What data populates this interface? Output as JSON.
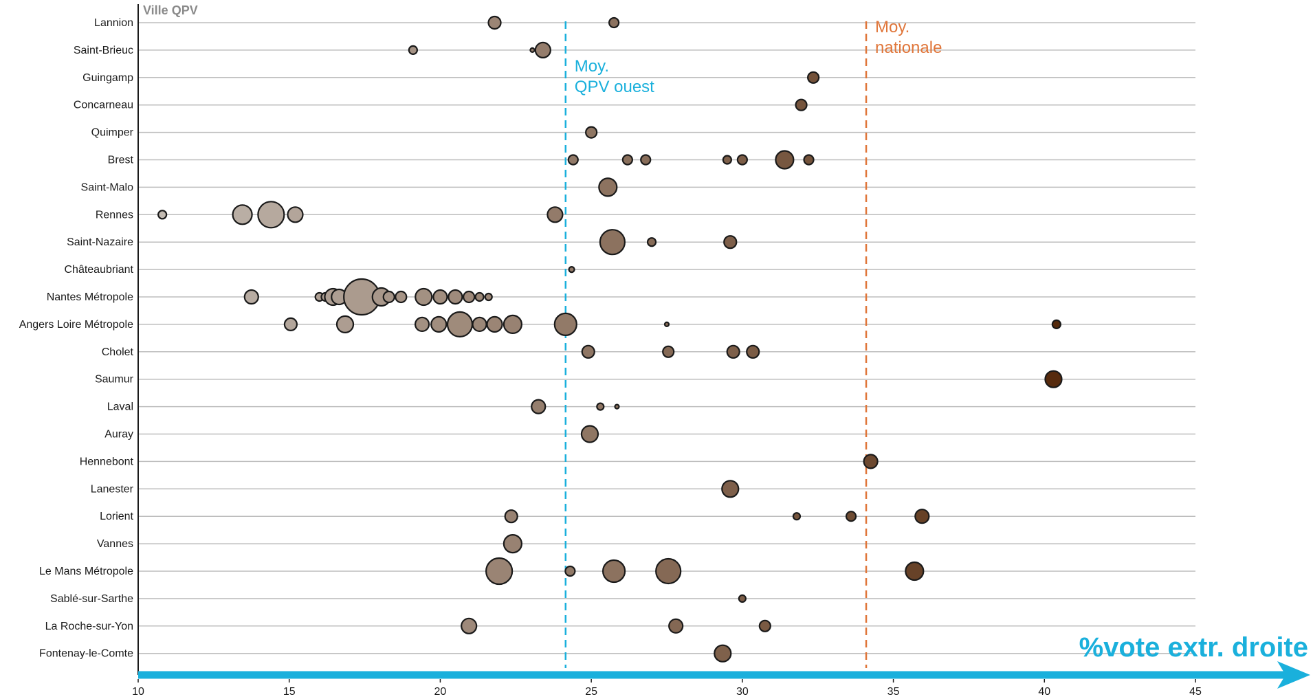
{
  "chart_data": {
    "type": "scatter",
    "title": "",
    "corner_label": "Ville QPV",
    "xlabel": "%vote extr. droite",
    "ylabel": "",
    "xlim": [
      10,
      45
    ],
    "x_ticks": [
      "10",
      "15",
      "20",
      "25",
      "30",
      "35",
      "40",
      "45"
    ],
    "grid": "horizontal",
    "point_size": "proportional (unlabeled)",
    "point_color": "graduated from light grey-brown (low) to dark brown (high)",
    "reference_lines": [
      {
        "value": 24.15,
        "label_lines": [
          "Moy.",
          "QPV ouest"
        ],
        "color": "#1ab0dc",
        "style": "dashed"
      },
      {
        "value": 34.1,
        "label_lines": [
          "Moy.",
          "nationale"
        ],
        "color": "#e0763a",
        "style": "dashed"
      }
    ],
    "colors": {
      "axis_arrow": "#1ab0dc",
      "grid": "#bdbdbd",
      "point_stroke": "#1a1a1a"
    },
    "categories": [
      "Lannion",
      "Saint-Brieuc",
      "Guingamp",
      "Concarneau",
      "Quimper",
      "Brest",
      "Saint-Malo",
      "Rennes",
      "Saint-Nazaire",
      "Châteaubriant",
      "Nantes Métropole",
      "Angers Loire Métropole",
      "Cholet",
      "Saumur",
      "Laval",
      "Auray",
      "Hennebont",
      "Lanester",
      "Lorient",
      "Vannes",
      "Le Mans Métropole",
      "Sablé-sur-Sarthe",
      "La Roche-sur-Yon",
      "Fontenay-le-Comte"
    ],
    "series": [
      {
        "category": "Lannion",
        "points": [
          {
            "x": 21.8,
            "s": 9
          },
          {
            "x": 25.75,
            "s": 7
          }
        ]
      },
      {
        "category": "Saint-Brieuc",
        "points": [
          {
            "x": 19.1,
            "s": 6
          },
          {
            "x": 23.05,
            "s": 3
          },
          {
            "x": 23.4,
            "s": 11
          }
        ]
      },
      {
        "category": "Guingamp",
        "points": [
          {
            "x": 32.35,
            "s": 8
          }
        ]
      },
      {
        "category": "Concarneau",
        "points": [
          {
            "x": 31.95,
            "s": 8
          }
        ]
      },
      {
        "category": "Quimper",
        "points": [
          {
            "x": 25.0,
            "s": 8
          }
        ]
      },
      {
        "category": "Brest",
        "points": [
          {
            "x": 24.4,
            "s": 7
          },
          {
            "x": 26.2,
            "s": 7
          },
          {
            "x": 26.8,
            "s": 7
          },
          {
            "x": 29.5,
            "s": 6
          },
          {
            "x": 30.0,
            "s": 7
          },
          {
            "x": 31.4,
            "s": 13
          },
          {
            "x": 32.2,
            "s": 7
          }
        ]
      },
      {
        "category": "Saint-Malo",
        "points": [
          {
            "x": 25.55,
            "s": 13
          }
        ]
      },
      {
        "category": "Rennes",
        "points": [
          {
            "x": 10.8,
            "s": 6
          },
          {
            "x": 13.45,
            "s": 14
          },
          {
            "x": 14.4,
            "s": 19
          },
          {
            "x": 15.2,
            "s": 11
          },
          {
            "x": 23.8,
            "s": 11
          }
        ]
      },
      {
        "category": "Saint-Nazaire",
        "points": [
          {
            "x": 25.7,
            "s": 18
          },
          {
            "x": 27.0,
            "s": 6
          },
          {
            "x": 29.6,
            "s": 9
          }
        ]
      },
      {
        "category": "Châteaubriant",
        "points": [
          {
            "x": 24.35,
            "s": 4
          }
        ]
      },
      {
        "category": "Nantes Métropole",
        "points": [
          {
            "x": 13.75,
            "s": 10
          },
          {
            "x": 16.0,
            "s": 6
          },
          {
            "x": 16.2,
            "s": 6
          },
          {
            "x": 16.45,
            "s": 12
          },
          {
            "x": 16.65,
            "s": 11
          },
          {
            "x": 17.4,
            "s": 26
          },
          {
            "x": 18.05,
            "s": 13
          },
          {
            "x": 18.3,
            "s": 8
          },
          {
            "x": 18.7,
            "s": 8
          },
          {
            "x": 19.45,
            "s": 12
          },
          {
            "x": 20.0,
            "s": 10
          },
          {
            "x": 20.5,
            "s": 10
          },
          {
            "x": 20.95,
            "s": 8
          },
          {
            "x": 21.3,
            "s": 6
          },
          {
            "x": 21.6,
            "s": 5
          }
        ]
      },
      {
        "category": "Angers Loire Métropole",
        "points": [
          {
            "x": 15.05,
            "s": 9
          },
          {
            "x": 16.85,
            "s": 12
          },
          {
            "x": 19.4,
            "s": 10
          },
          {
            "x": 19.95,
            "s": 11
          },
          {
            "x": 20.65,
            "s": 18
          },
          {
            "x": 21.3,
            "s": 10
          },
          {
            "x": 21.8,
            "s": 11
          },
          {
            "x": 22.4,
            "s": 13
          },
          {
            "x": 24.15,
            "s": 16
          },
          {
            "x": 27.5,
            "s": 3
          },
          {
            "x": 40.4,
            "s": 6
          }
        ]
      },
      {
        "category": "Cholet",
        "points": [
          {
            "x": 24.9,
            "s": 9
          },
          {
            "x": 27.55,
            "s": 8
          },
          {
            "x": 29.7,
            "s": 9
          },
          {
            "x": 30.35,
            "s": 9
          }
        ]
      },
      {
        "category": "Saumur",
        "points": [
          {
            "x": 40.3,
            "s": 12
          }
        ]
      },
      {
        "category": "Laval",
        "points": [
          {
            "x": 23.25,
            "s": 10
          },
          {
            "x": 25.3,
            "s": 5
          },
          {
            "x": 25.85,
            "s": 3
          }
        ]
      },
      {
        "category": "Auray",
        "points": [
          {
            "x": 24.95,
            "s": 12
          }
        ]
      },
      {
        "category": "Hennebont",
        "points": [
          {
            "x": 34.25,
            "s": 10
          }
        ]
      },
      {
        "category": "Lanester",
        "points": [
          {
            "x": 29.6,
            "s": 12
          }
        ]
      },
      {
        "category": "Lorient",
        "points": [
          {
            "x": 22.35,
            "s": 9
          },
          {
            "x": 31.8,
            "s": 5
          },
          {
            "x": 33.6,
            "s": 7
          },
          {
            "x": 35.95,
            "s": 10
          }
        ]
      },
      {
        "category": "Vannes",
        "points": [
          {
            "x": 22.4,
            "s": 13
          }
        ]
      },
      {
        "category": "Le Mans Métropole",
        "points": [
          {
            "x": 21.95,
            "s": 19
          },
          {
            "x": 24.3,
            "s": 7
          },
          {
            "x": 25.75,
            "s": 16
          },
          {
            "x": 27.55,
            "s": 18
          },
          {
            "x": 35.7,
            "s": 13
          }
        ]
      },
      {
        "category": "Sablé-sur-Sarthe",
        "points": [
          {
            "x": 30.0,
            "s": 5
          }
        ]
      },
      {
        "category": "La Roche-sur-Yon",
        "points": [
          {
            "x": 20.95,
            "s": 11
          },
          {
            "x": 27.8,
            "s": 10
          },
          {
            "x": 30.75,
            "s": 8
          }
        ]
      },
      {
        "category": "Fontenay-le-Comte",
        "points": [
          {
            "x": 29.35,
            "s": 12
          }
        ]
      }
    ]
  }
}
